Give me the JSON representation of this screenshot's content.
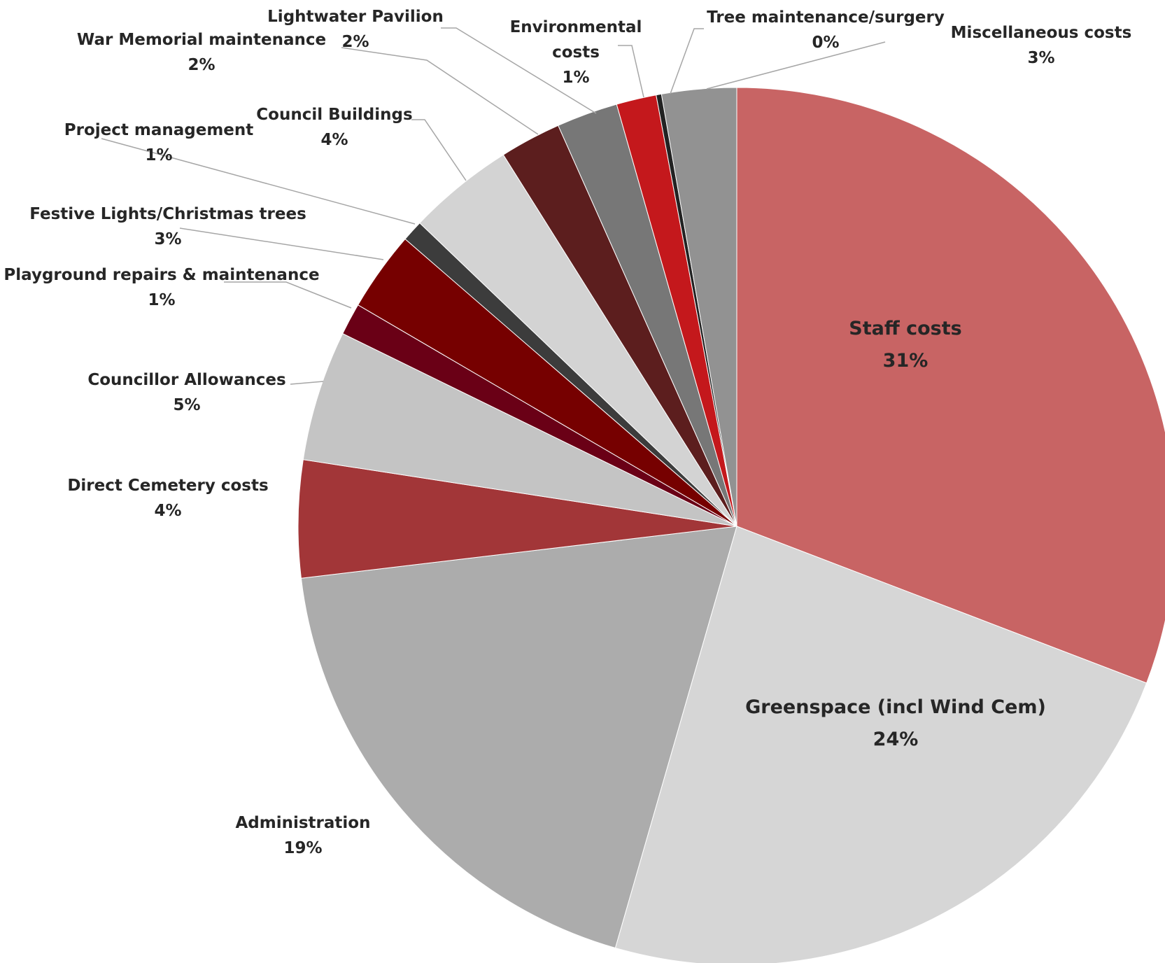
{
  "chart_data": {
    "type": "pie",
    "title": "",
    "start_angle_deg": 0,
    "direction": "clockwise",
    "slices": [
      {
        "label": "Staff costs",
        "percent_label": "31%",
        "value": 31.4,
        "color": "#c86464"
      },
      {
        "label": "Greenspace (incl Wind Cem)",
        "percent_label": "24%",
        "value": 24.1,
        "color": "#d6d6d6"
      },
      {
        "label": "Administration",
        "percent_label": "19%",
        "value": 19.0,
        "color": "#acacac"
      },
      {
        "label": "Direct Cemetery costs",
        "percent_label": "4%",
        "value": 4.4,
        "color": "#a23638"
      },
      {
        "label": "Councillor Allowances",
        "percent_label": "5%",
        "value": 4.9,
        "color": "#c4c4c4"
      },
      {
        "label": "Playground repairs & maintenance",
        "percent_label": "1%",
        "value": 1.2,
        "color": "#6a0016"
      },
      {
        "label": "Festive Lights/Christmas trees",
        "percent_label": "3%",
        "value": 3.0,
        "color": "#760000"
      },
      {
        "label": "Project management",
        "percent_label": "1%",
        "value": 0.8,
        "color": "#3c3c3c"
      },
      {
        "label": "Council Buildings",
        "percent_label": "4%",
        "value": 4.0,
        "color": "#d3d3d3"
      },
      {
        "label": "War Memorial maintenance",
        "percent_label": "2%",
        "value": 2.3,
        "color": "#5c1e1e"
      },
      {
        "label": "Lightwater Pavilion",
        "percent_label": "2%",
        "value": 2.3,
        "color": "#777777"
      },
      {
        "label": "Environmental costs",
        "percent_label": "1%",
        "value": 1.5,
        "color": "#c4181c"
      },
      {
        "label": "Tree maintenance/surgery",
        "percent_label": "0%",
        "value": 0.2,
        "color": "#222222"
      },
      {
        "label": "Miscellaneous costs",
        "percent_label": "3%",
        "value": 2.8,
        "color": "#929292"
      }
    ]
  }
}
